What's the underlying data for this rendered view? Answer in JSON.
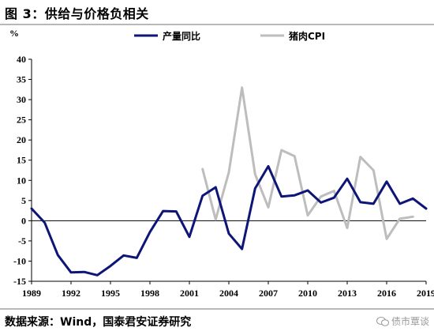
{
  "header": {
    "title": "图 3：供给与价格负相关"
  },
  "footer": {
    "source": "数据来源：Wind，国泰君安证券研究",
    "watermark": "债市覃谈"
  },
  "chart_data": {
    "type": "line",
    "title": "图 3：供给与价格负相关",
    "ylabel": "%",
    "xlabel": "",
    "ylim": [
      -15,
      40
    ],
    "y_ticks": [
      -15,
      -10,
      -5,
      0,
      5,
      10,
      15,
      20,
      25,
      30,
      35,
      40
    ],
    "x_range": [
      1989,
      2019
    ],
    "x_ticks": [
      1989,
      1992,
      1995,
      1998,
      2001,
      2004,
      2007,
      2010,
      2013,
      2016,
      2019
    ],
    "grid": false,
    "legend_position": "top",
    "series": [
      {
        "name": "产量同比",
        "color": "#0d1577",
        "x": [
          1989,
          1990,
          1991,
          1992,
          1993,
          1994,
          1995,
          1996,
          1997,
          1998,
          1999,
          2000,
          2001,
          2002,
          2003,
          2004,
          2005,
          2006,
          2007,
          2008,
          2009,
          2010,
          2011,
          2012,
          2013,
          2014,
          2015,
          2016,
          2017,
          2018,
          2019
        ],
        "values": [
          3.0,
          -0.5,
          -8.5,
          -12.8,
          -12.7,
          -13.5,
          -11.2,
          -8.6,
          -9.2,
          -2.8,
          2.4,
          2.3,
          -4.0,
          6.2,
          8.3,
          -3.2,
          -7.0,
          8.0,
          13.5,
          6.0,
          6.3,
          7.5,
          4.5,
          5.7,
          10.4,
          4.6,
          4.2,
          9.7,
          4.2,
          5.5,
          3.0
        ]
      },
      {
        "name": "猪肉CPI",
        "color": "#bdbdbd",
        "x": [
          2002,
          2003,
          2004,
          2005,
          2006,
          2007,
          2008,
          2009,
          2010,
          2011,
          2012,
          2013,
          2014,
          2015,
          2016,
          2017,
          2018
        ],
        "values": [
          12.8,
          0.3,
          12.0,
          33.0,
          11.5,
          3.3,
          17.5,
          16.0,
          1.3,
          6.0,
          7.4,
          -1.8,
          15.8,
          12.5,
          -4.5,
          0.5,
          1.0
        ]
      }
    ]
  }
}
